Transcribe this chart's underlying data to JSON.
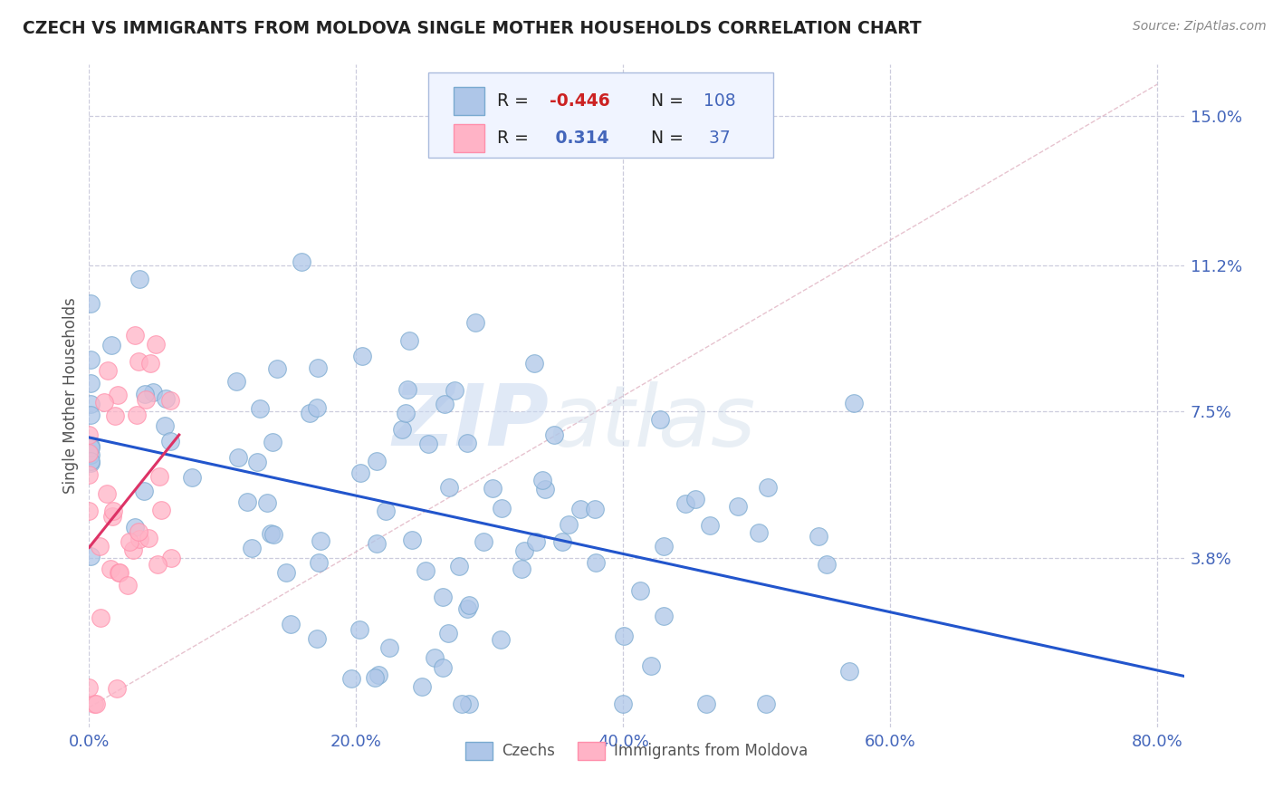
{
  "title": "CZECH VS IMMIGRANTS FROM MOLDOVA SINGLE MOTHER HOUSEHOLDS CORRELATION CHART",
  "source": "Source: ZipAtlas.com",
  "ylabel": "Single Mother Households",
  "xlim": [
    0.0,
    0.82
  ],
  "ylim": [
    -0.005,
    0.163
  ],
  "yticks": [
    0.038,
    0.075,
    0.112,
    0.15
  ],
  "ytick_labels": [
    "3.8%",
    "7.5%",
    "11.2%",
    "15.0%"
  ],
  "xticks": [
    0.0,
    0.2,
    0.4,
    0.6,
    0.8
  ],
  "xtick_labels": [
    "0.0%",
    "20.0%",
    "40.0%",
    "60.0%",
    "80.0%"
  ],
  "czech_R": -0.446,
  "czech_N": 108,
  "moldova_R": 0.314,
  "moldova_N": 37,
  "blue_scatter_face": "#AEC6E8",
  "blue_scatter_edge": "#7AAAD0",
  "pink_scatter_face": "#FFB3C6",
  "pink_scatter_edge": "#FF8FAB",
  "trend_blue": "#2255CC",
  "trend_pink": "#DD3366",
  "axis_color": "#4466BB",
  "grid_color": "#CCCCDD",
  "title_color": "#222222",
  "watermark_color": "#D8E4F0",
  "legend_box_face": "#F0F4FF",
  "legend_box_edge": "#AABBDD",
  "legend_R_color": "#222222",
  "legend_R_neg_color": "#CC2222",
  "legend_N_color": "#4466BB",
  "diag_color": "#DDAABB",
  "bottom_legend_color": "#555555"
}
